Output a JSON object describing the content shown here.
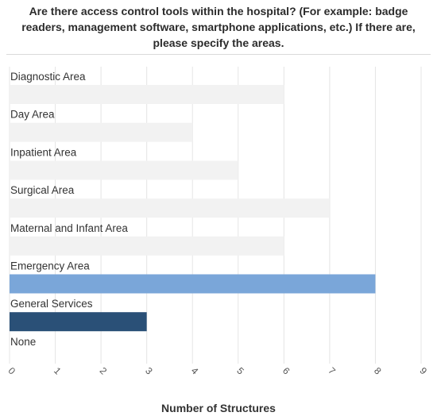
{
  "chart_data": {
    "type": "bar",
    "orientation": "horizontal",
    "title": "Are there access control tools within the hospital? (For example: badge\nreaders, management software, smartphone applications, etc.) If there are,\nplease specify the areas.",
    "xlabel": "Number of Structures",
    "ylabel": "",
    "categories": [
      "Diagnostic Area",
      "Day Area",
      "Inpatient Area",
      "Surgical Area",
      "Maternal and Infant Area",
      "Emergency Area",
      "General Services",
      "None"
    ],
    "values": [
      6,
      4,
      5,
      7,
      6,
      8,
      3,
      0
    ],
    "bar_colors": [
      "#f2f2f2",
      "#f2f2f2",
      "#f2f2f2",
      "#f2f2f2",
      "#f2f2f2",
      "#7aa6d9",
      "#2a5077",
      "#f2f2f2"
    ],
    "xlim": [
      0,
      9
    ],
    "xticks": [
      "0",
      "1",
      "2",
      "3",
      "4",
      "5",
      "6",
      "7",
      "8",
      "9"
    ],
    "grid": true,
    "legend": "none"
  }
}
